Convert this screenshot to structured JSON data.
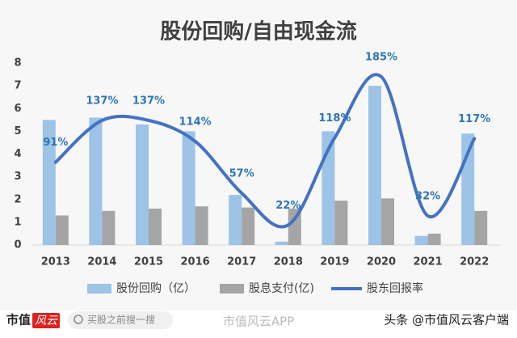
{
  "chart_data": {
    "type": "bar_line",
    "title": "股份回购/自由现金流",
    "categories": [
      "2013",
      "2014",
      "2015",
      "2016",
      "2017",
      "2018",
      "2019",
      "2020",
      "2021",
      "2022"
    ],
    "series": [
      {
        "name": "股份回购（亿）",
        "type": "bar",
        "color": "#9dc3e6",
        "values": [
          5.5,
          5.6,
          5.3,
          5.0,
          2.2,
          0.15,
          5.0,
          7.0,
          0.4,
          4.9
        ]
      },
      {
        "name": "股息支付(亿)",
        "type": "bar",
        "color": "#a5a5a5",
        "values": [
          1.3,
          1.5,
          1.6,
          1.7,
          1.65,
          1.6,
          1.95,
          2.05,
          0.5,
          1.5
        ]
      },
      {
        "name": "股东回报率",
        "type": "line",
        "axis": "y2",
        "color": "#4472c4",
        "values": [
          91,
          137,
          137,
          114,
          57,
          22,
          118,
          185,
          32,
          117
        ],
        "value_labels": [
          "91%",
          "137%",
          "137%",
          "114%",
          "57%",
          "22%",
          "118%",
          "185%",
          "32%",
          "117%"
        ]
      }
    ],
    "ylim": [
      0,
      8
    ],
    "yticks": [
      0,
      1,
      2,
      3,
      4,
      5,
      6,
      7,
      8
    ],
    "y2lim": [
      0,
      200
    ],
    "legend": "bottom"
  },
  "footer": {
    "logo_a": "市值",
    "logo_b": "风云",
    "search": "买股之前搜一搜",
    "watermark": "市值风云APP",
    "source": "头条 @市值风云客户端"
  }
}
